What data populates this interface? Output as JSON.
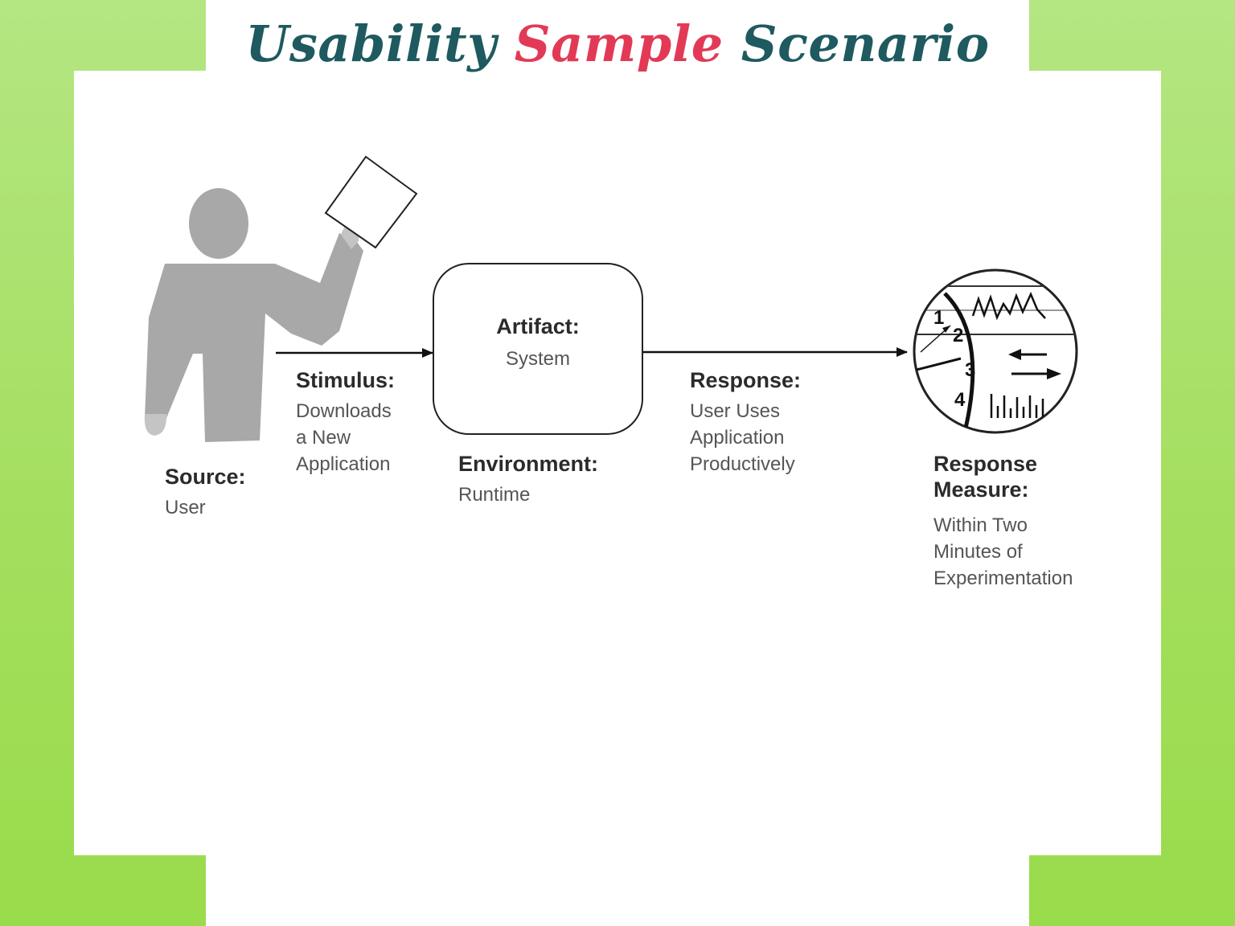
{
  "title": {
    "part1": "Usability ",
    "part2": "Sample",
    "part3": " Scenario"
  },
  "colors": {
    "title_dark": "#1e5a5f",
    "title_accent": "#e23a56",
    "side_bar_green": "#a3de5c",
    "figure_gray": "#a8a8a8"
  },
  "diagram": {
    "source": {
      "heading": "Source:",
      "text": "User"
    },
    "stimulus": {
      "heading": "Stimulus:",
      "lines": [
        "Downloads",
        "a New",
        "Application"
      ]
    },
    "artifact": {
      "heading": "Artifact:",
      "text": "System"
    },
    "environment": {
      "heading": "Environment:",
      "text": "Runtime"
    },
    "response": {
      "heading": "Response:",
      "lines": [
        "User Uses",
        "Application",
        "Productively"
      ]
    },
    "response_measure": {
      "heading_lines": [
        "Response",
        "Measure:"
      ],
      "lines": [
        "Within Two",
        "Minutes of",
        "Experimentation"
      ]
    },
    "gauge_numbers": [
      "1",
      "2",
      "3",
      "4"
    ],
    "icons": [
      "user-figure-icon",
      "paper-sheet-icon",
      "measurement-gauge-icon"
    ]
  }
}
